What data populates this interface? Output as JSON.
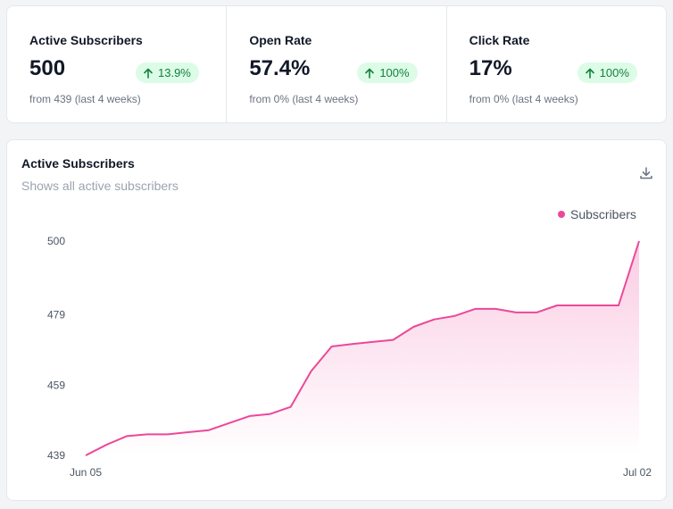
{
  "stats": [
    {
      "title": "Active Subscribers",
      "value": "500",
      "change": "13.9%",
      "sub": "from 439 (last 4 weeks)"
    },
    {
      "title": "Open Rate",
      "value": "57.4%",
      "change": "100%",
      "sub": "from 0% (last 4 weeks)"
    },
    {
      "title": "Click Rate",
      "value": "17%",
      "change": "100%",
      "sub": "from 0% (last 4 weeks)"
    }
  ],
  "chart": {
    "title": "Active Subscribers",
    "subtitle": "Shows all active subscribers",
    "download_icon": "download-icon",
    "legend": "Subscribers"
  },
  "colors": {
    "accent": "#ec4899",
    "positive_bg": "#dcfce7",
    "positive_text": "#15803d"
  },
  "chart_data": {
    "type": "area",
    "x_first_label": "Jun 05",
    "x_last_label": "Jul 02",
    "y_ticks": [
      500,
      479,
      459,
      439
    ],
    "ylim": [
      439,
      500
    ],
    "grid": false,
    "legend_position": "top-right",
    "series": [
      {
        "name": "Subscribers",
        "values": [
          439,
          442,
          444.5,
          445,
          445,
          445.6,
          446.2,
          448.2,
          450.2,
          450.8,
          452.8,
          463,
          470,
          470.7,
          471.3,
          471.9,
          475.6,
          477.7,
          478.7,
          480.7,
          480.7,
          479.7,
          479.7,
          481.7,
          481.7,
          481.7,
          481.7,
          500
        ]
      }
    ]
  }
}
